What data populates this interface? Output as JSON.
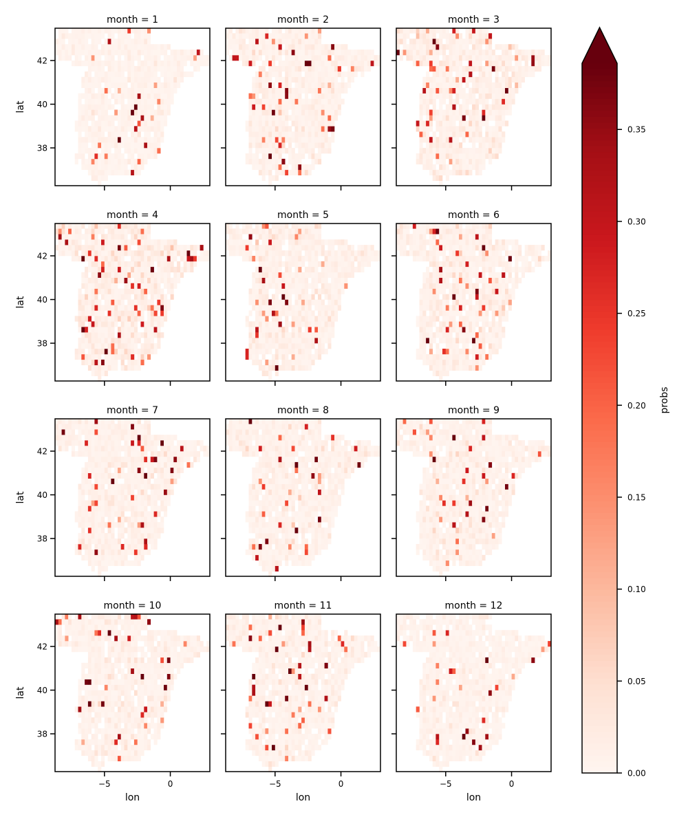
{
  "chart_data": {
    "type": "heatmap",
    "layout": "4x3 facet grid",
    "panels": [
      {
        "title": "month = 1"
      },
      {
        "title": "month = 2"
      },
      {
        "title": "month = 3"
      },
      {
        "title": "month = 4"
      },
      {
        "title": "month = 5"
      },
      {
        "title": "month = 6"
      },
      {
        "title": "month = 7"
      },
      {
        "title": "month = 8"
      },
      {
        "title": "month = 9"
      },
      {
        "title": "month = 10"
      },
      {
        "title": "month = 11"
      },
      {
        "title": "month = 12"
      }
    ],
    "xlabel": "lon",
    "ylabel": "lat",
    "xlim": [
      -8.75,
      3.0
    ],
    "ylim": [
      36.27,
      43.48
    ],
    "xticks": [
      -5,
      0
    ],
    "xtick_labels": [
      "−5",
      "0"
    ],
    "yticks": [
      38,
      40,
      42
    ],
    "ytick_labels": [
      "38",
      "40",
      "42"
    ],
    "grid_resolution_deg": 0.25,
    "colorbar": {
      "label": "probs",
      "colormap": "Reds",
      "vmin": 0.0,
      "vmax": 0.386,
      "extend": "max",
      "ticks": [
        0.0,
        0.05,
        0.1,
        0.15,
        0.2,
        0.25,
        0.3,
        0.35
      ],
      "tick_labels": [
        "0.00",
        "0.05",
        "0.10",
        "0.15",
        "0.20",
        "0.25",
        "0.30",
        "0.35"
      ]
    },
    "grid": false,
    "colors": [
      "#fff5f0",
      "#fee0d2",
      "#fcbba1",
      "#fc9272",
      "#fb6a4a",
      "#ef3b2c",
      "#cb181d",
      "#a50f15",
      "#67000d"
    ]
  }
}
